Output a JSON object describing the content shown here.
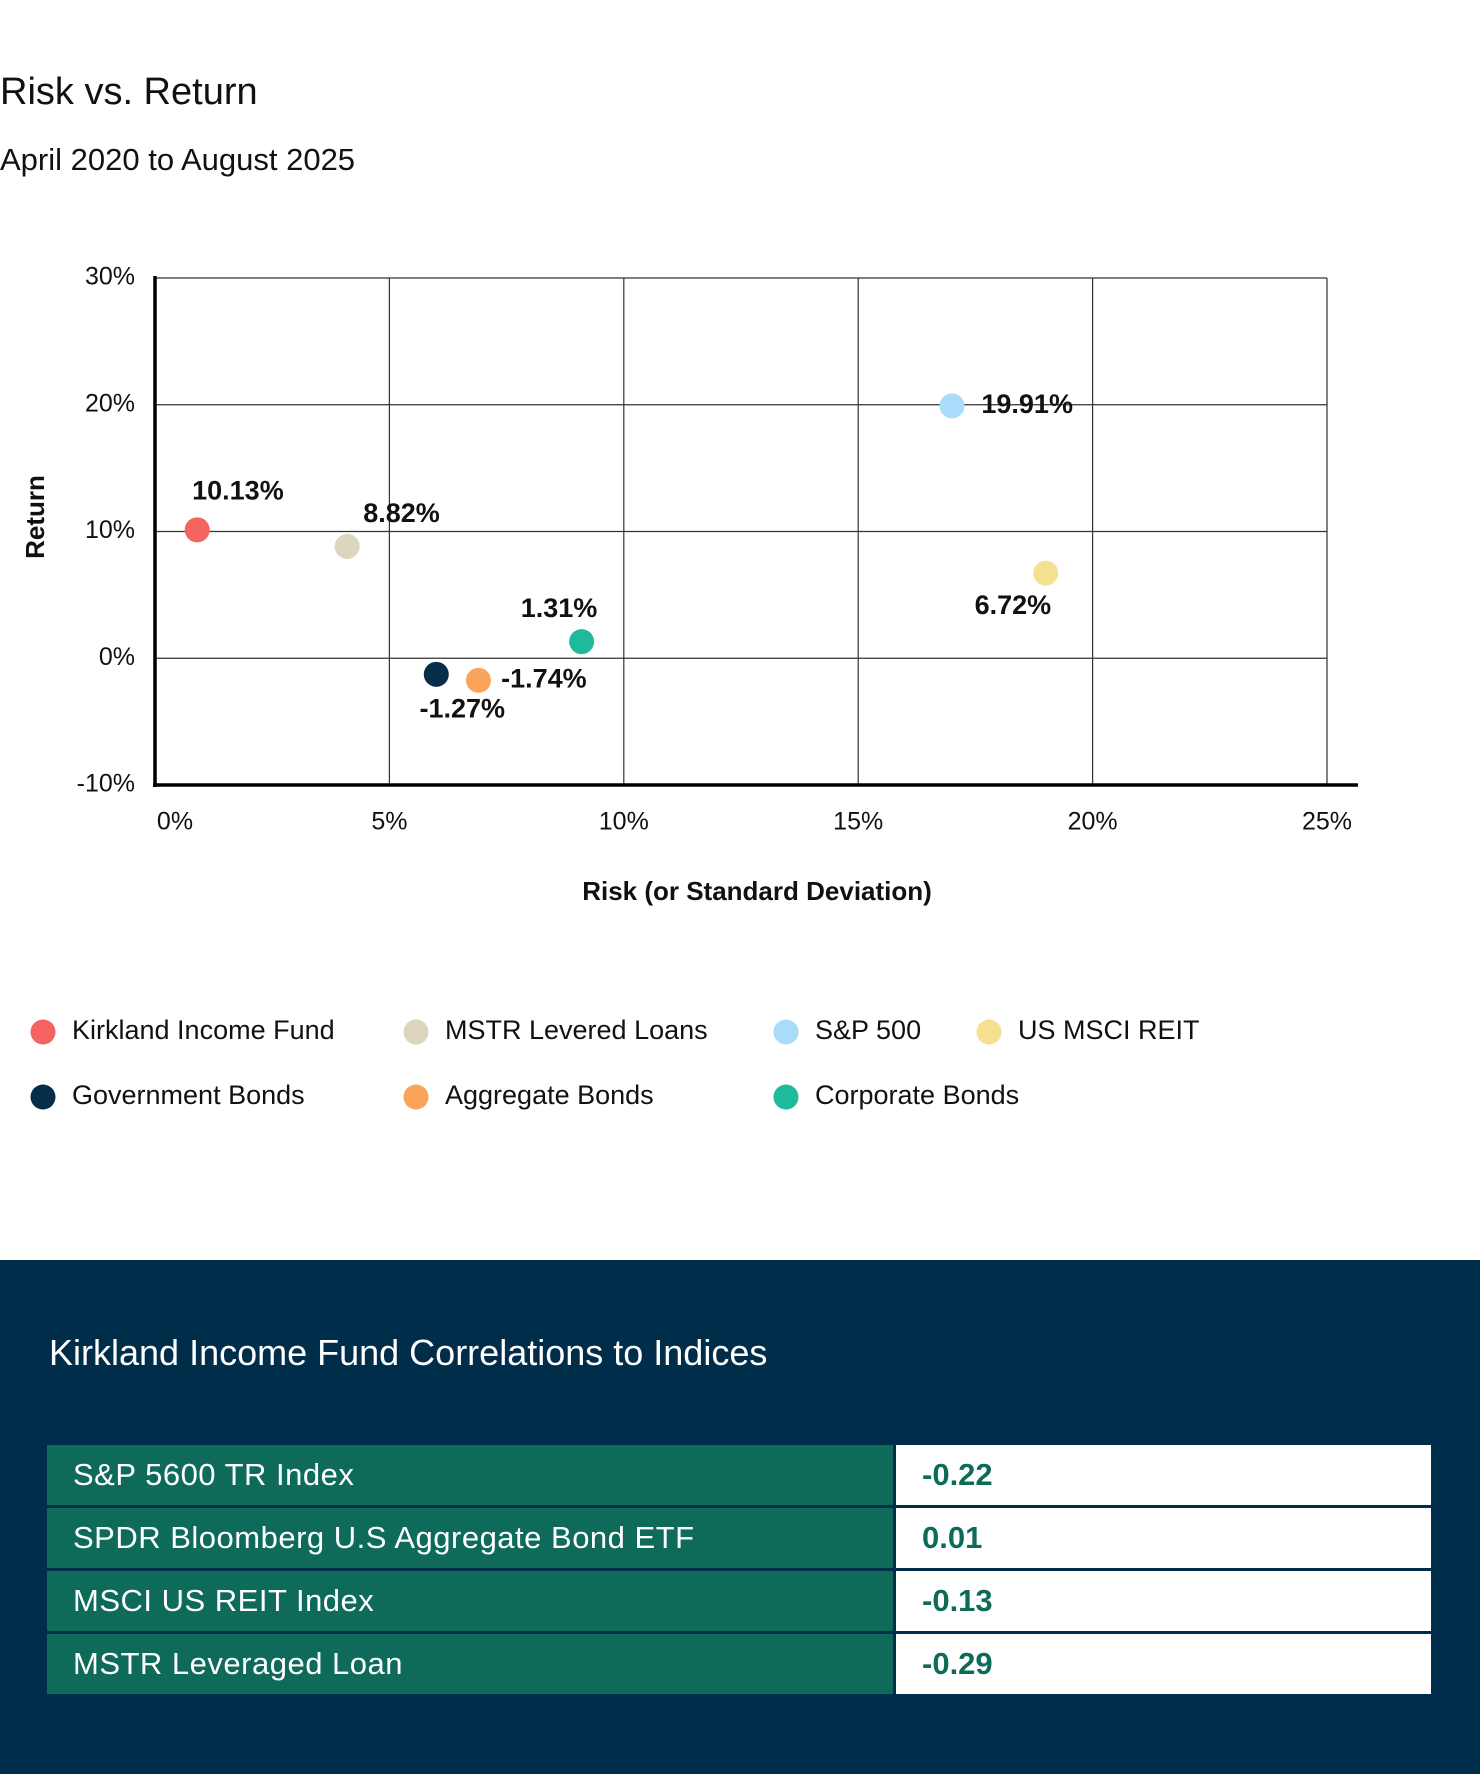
{
  "chart_data": {
    "type": "scatter",
    "title": "Risk vs. Return",
    "subtitle": "April 2020 to August 2025",
    "xlabel": "Risk (or Standard Deviation)",
    "ylabel": "Return",
    "xlim": [
      0,
      25
    ],
    "ylim": [
      -10,
      30
    ],
    "xticks": [
      {
        "value": 0,
        "label": "0%"
      },
      {
        "value": 5,
        "label": "5%"
      },
      {
        "value": 10,
        "label": "10%"
      },
      {
        "value": 15,
        "label": "15%"
      },
      {
        "value": 20,
        "label": "20%"
      },
      {
        "value": 25,
        "label": "25%"
      }
    ],
    "yticks": [
      {
        "value": -10,
        "label": "-10%"
      },
      {
        "value": 0,
        "label": "0%"
      },
      {
        "value": 10,
        "label": "10%"
      },
      {
        "value": 20,
        "label": "20%"
      },
      {
        "value": 30,
        "label": "30%"
      }
    ],
    "grid": true,
    "series": [
      {
        "name": "Kirkland Income Fund",
        "color": "#f4635f",
        "x": [
          0.9
        ],
        "values": [
          10.13
        ],
        "value_labels": [
          "10.13%"
        ]
      },
      {
        "name": "MSTR Levered Loans",
        "color": "#ddd5c0",
        "x": [
          4.1
        ],
        "values": [
          8.82
        ],
        "value_labels": [
          "8.82%"
        ]
      },
      {
        "name": "S&P 500",
        "color": "#a9dcfa",
        "x": [
          17.0
        ],
        "values": [
          19.91
        ],
        "value_labels": [
          "19.91%"
        ]
      },
      {
        "name": "US MSCI REIT",
        "color": "#f5df91",
        "x": [
          19.0
        ],
        "values": [
          6.72
        ],
        "value_labels": [
          "6.72%"
        ]
      },
      {
        "name": "Government Bonds",
        "color": "#062e49",
        "x": [
          6.0
        ],
        "values": [
          -1.27
        ],
        "value_labels": [
          "-1.27%"
        ]
      },
      {
        "name": "Aggregate Bonds",
        "color": "#fba55a",
        "x": [
          6.9
        ],
        "values": [
          -1.74
        ],
        "value_labels": [
          "-1.74%"
        ]
      },
      {
        "name": "Corporate Bonds",
        "color": "#1fba9c",
        "x": [
          9.1
        ],
        "values": [
          1.31
        ],
        "value_labels": [
          "1.31%"
        ]
      }
    ]
  },
  "table": {
    "title": "Kirkland Income Fund Correlations to Indices",
    "rows": [
      [
        "S&P 5600 TR Index",
        "-0.22"
      ],
      [
        "SPDR Bloomberg U.S Aggregate Bond ETF",
        "0.01"
      ],
      [
        "MSCI US REIT Index",
        "-0.13"
      ],
      [
        "MSTR Leveraged Loan",
        "-0.29"
      ]
    ]
  }
}
